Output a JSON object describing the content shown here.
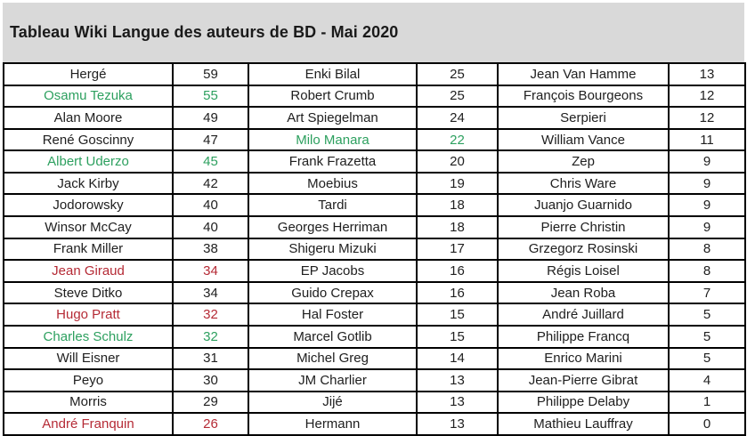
{
  "title": "Tableau Wiki Langue des auteurs de BD - Mai 2020",
  "colors": {
    "black": "#202020",
    "green": "#2da05f",
    "red": "#b52a35",
    "title_bg": "#d9d9d9",
    "border": "#000000"
  },
  "table": {
    "rows": [
      [
        {
          "name": "Hergé",
          "value": "59",
          "color": "black"
        },
        {
          "name": "Enki Bilal",
          "value": "25",
          "color": "black"
        },
        {
          "name": "Jean Van Hamme",
          "value": "13",
          "color": "black"
        }
      ],
      [
        {
          "name": "Osamu Tezuka",
          "value": "55",
          "color": "green"
        },
        {
          "name": "Robert Crumb",
          "value": "25",
          "color": "black"
        },
        {
          "name": "François Bourgeons",
          "value": "12",
          "color": "black"
        }
      ],
      [
        {
          "name": "Alan Moore",
          "value": "49",
          "color": "black"
        },
        {
          "name": "Art Spiegelman",
          "value": "24",
          "color": "black"
        },
        {
          "name": "Serpieri",
          "value": "12",
          "color": "black"
        }
      ],
      [
        {
          "name": "René Goscinny",
          "value": "47",
          "color": "black"
        },
        {
          "name": "Milo Manara",
          "value": "22",
          "color": "green"
        },
        {
          "name": "William Vance",
          "value": "11",
          "color": "black"
        }
      ],
      [
        {
          "name": "Albert Uderzo",
          "value": "45",
          "color": "green"
        },
        {
          "name": "Frank Frazetta",
          "value": "20",
          "color": "black"
        },
        {
          "name": "Zep",
          "value": "9",
          "color": "black"
        }
      ],
      [
        {
          "name": "Jack Kirby",
          "value": "42",
          "color": "black"
        },
        {
          "name": "Moebius",
          "value": "19",
          "color": "black"
        },
        {
          "name": "Chris Ware",
          "value": "9",
          "color": "black"
        }
      ],
      [
        {
          "name": "Jodorowsky",
          "value": "40",
          "color": "black"
        },
        {
          "name": "Tardi",
          "value": "18",
          "color": "black"
        },
        {
          "name": "Juanjo Guarnido",
          "value": "9",
          "color": "black"
        }
      ],
      [
        {
          "name": "Winsor McCay",
          "value": "40",
          "color": "black"
        },
        {
          "name": "Georges Herriman",
          "value": "18",
          "color": "black"
        },
        {
          "name": "Pierre Christin",
          "value": "9",
          "color": "black"
        }
      ],
      [
        {
          "name": "Frank Miller",
          "value": "38",
          "color": "black"
        },
        {
          "name": "Shigeru Mizuki",
          "value": "17",
          "color": "black"
        },
        {
          "name": "Grzegorz Rosinski",
          "value": "8",
          "color": "black"
        }
      ],
      [
        {
          "name": "Jean Giraud",
          "value": "34",
          "color": "red"
        },
        {
          "name": "EP Jacobs",
          "value": "16",
          "color": "black"
        },
        {
          "name": "Régis Loisel",
          "value": "8",
          "color": "black"
        }
      ],
      [
        {
          "name": "Steve Ditko",
          "value": "34",
          "color": "black"
        },
        {
          "name": "Guido Crepax",
          "value": "16",
          "color": "black"
        },
        {
          "name": "Jean Roba",
          "value": "7",
          "color": "black"
        }
      ],
      [
        {
          "name": "Hugo Pratt",
          "value": "32",
          "color": "red"
        },
        {
          "name": "Hal Foster",
          "value": "15",
          "color": "black"
        },
        {
          "name": "André Juillard",
          "value": "5",
          "color": "black"
        }
      ],
      [
        {
          "name": "Charles Schulz",
          "value": "32",
          "color": "green"
        },
        {
          "name": "Marcel Gotlib",
          "value": "15",
          "color": "black"
        },
        {
          "name": "Philippe Francq",
          "value": "5",
          "color": "black"
        }
      ],
      [
        {
          "name": "Will Eisner",
          "value": "31",
          "color": "black"
        },
        {
          "name": "Michel Greg",
          "value": "14",
          "color": "black"
        },
        {
          "name": "Enrico Marini",
          "value": "5",
          "color": "black"
        }
      ],
      [
        {
          "name": "Peyo",
          "value": "30",
          "color": "black"
        },
        {
          "name": "JM Charlier",
          "value": "13",
          "color": "black"
        },
        {
          "name": "Jean-Pierre Gibrat",
          "value": "4",
          "color": "black"
        }
      ],
      [
        {
          "name": "Morris",
          "value": "29",
          "color": "black"
        },
        {
          "name": "Jijé",
          "value": "13",
          "color": "black"
        },
        {
          "name": "Philippe Delaby",
          "value": "1",
          "color": "black"
        }
      ],
      [
        {
          "name": "André Franquin",
          "value": "26",
          "color": "red"
        },
        {
          "name": "Hermann",
          "value": "13",
          "color": "black"
        },
        {
          "name": "Mathieu Lauffray",
          "value": "0",
          "color": "black"
        }
      ]
    ]
  }
}
